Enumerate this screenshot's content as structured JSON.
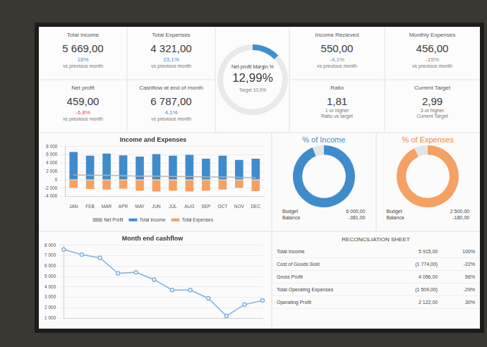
{
  "kpis": [
    {
      "title": "Total Income",
      "value": "5 669,00",
      "change": "16%",
      "color": "#3d8fd1",
      "notes": [
        "vs previous month"
      ]
    },
    {
      "title": "Total Expenses",
      "value": "4 321,00",
      "change": "23,1%",
      "color": "#3d8fd1",
      "notes": [
        "vs previous month"
      ]
    },
    {
      "title": "Net profit",
      "value": "459,00",
      "change": "-6,8%",
      "color": "#d9534f",
      "notes": [
        "vs previous month"
      ]
    },
    {
      "title": "Cashflow at end of month",
      "value": "6 787,00",
      "change": "4,1%",
      "color": "#3d8fd1",
      "notes": [
        "vs previous month"
      ]
    },
    {
      "title": "Income Recieved",
      "value": "550,00",
      "change": "-4,1%",
      "color": "#8a8a8a",
      "notes": [
        "vs previous month"
      ]
    },
    {
      "title": "Monthly Expenses",
      "value": "456,00",
      "change": "-15%",
      "color": "#8a8a8a",
      "notes": [
        "vs previous month"
      ]
    },
    {
      "title": "Ratio",
      "value": "1,81",
      "notes": [
        "1 or higher",
        "Ratio vs target"
      ]
    },
    {
      "title": "Current Target",
      "value": "2,99",
      "notes": [
        "3 or higher",
        "Current Target"
      ]
    }
  ],
  "chart_data": [
    {
      "type": "doughnut",
      "title": "Net profit Margin %",
      "values": [
        12.99
      ],
      "value_labels": [
        "12,99%"
      ],
      "ylim": [
        0,
        100
      ],
      "subtitle": "Target 10,0%",
      "color": "#3d8fd1"
    },
    {
      "type": "bar",
      "title": "Income and Expenses",
      "stacked": true,
      "grid": true,
      "legend": "bottom",
      "categories": [
        "JAN",
        "FEB",
        "MAR",
        "APR",
        "MAY",
        "JUN",
        "JUL",
        "AUG",
        "SEP",
        "OCT",
        "NOV",
        "DEC"
      ],
      "series": [
        {
          "name": "Total Income",
          "type": "bar",
          "color": "#3f8ccc",
          "values": [
            6700,
            5800,
            6300,
            5900,
            5600,
            6200,
            5800,
            6000,
            5100,
            5800,
            4800,
            5100
          ]
        },
        {
          "name": "Total Expenses",
          "type": "bar",
          "color": "#f4a163",
          "values": [
            -1900,
            -2200,
            -2300,
            -2100,
            -2600,
            -2800,
            -2600,
            -2800,
            -2600,
            -2300,
            -1900,
            -2700
          ]
        },
        {
          "name": "Net Profit",
          "type": "line",
          "color": "#b5b5b5",
          "values": [
            1200,
            1100,
            1100,
            1000,
            900,
            900,
            800,
            800,
            700,
            700,
            600,
            500
          ]
        }
      ],
      "ylim": [
        -4000,
        8000
      ],
      "yticks": [
        {
          "value": -4000,
          "label": "-4 000"
        },
        {
          "value": -2000,
          "label": "-2 000"
        },
        0,
        {
          "value": 2000,
          "label": "2 000"
        },
        {
          "value": 4000,
          "label": "4 000"
        },
        {
          "value": 6000,
          "label": "6 000"
        },
        {
          "value": 8000,
          "label": "8 000"
        }
      ]
    },
    {
      "type": "doughnut",
      "title": "% of Income",
      "values": [
        94,
        6
      ],
      "colors": [
        "#3f8ccc",
        "#e4e4e4"
      ],
      "color": "#3f8ccc",
      "footer": [
        [
          "Budget",
          "6 000,00"
        ],
        [
          "Balance",
          "-381,00"
        ]
      ]
    },
    {
      "type": "doughnut",
      "title": "% of Expenses",
      "values": [
        93,
        7
      ],
      "colors": [
        "#f4a163",
        "#e4e4e4"
      ],
      "color": "#f08a3c",
      "footer": [
        [
          "Budget",
          "2 500,00"
        ],
        [
          "Balance",
          "-180,00"
        ]
      ]
    },
    {
      "type": "line",
      "title": "Month end cashflow",
      "grid": true,
      "tick_labels": "y",
      "marker": "circle",
      "color": "#7fb2dd",
      "categories": [
        null,
        null,
        null,
        null,
        null,
        null,
        null,
        null,
        null,
        null,
        null,
        null
      ],
      "values": [
        7600,
        7100,
        6800,
        5300,
        5400,
        4700,
        3700,
        3700,
        2900,
        1200,
        2300,
        2700
      ],
      "ylim": [
        1000,
        8000
      ],
      "yticks": [
        {
          "value": 1000,
          "label": "1 000"
        },
        {
          "value": 2000,
          "label": "2 000"
        },
        {
          "value": 3000,
          "label": "3 000"
        },
        {
          "value": 4000,
          "label": "4 000"
        },
        {
          "value": 5000,
          "label": "5 000"
        },
        {
          "value": 6000,
          "label": "6 000"
        },
        {
          "value": 7000,
          "label": "7 000"
        },
        {
          "value": 8000,
          "label": "8 000"
        }
      ]
    }
  ],
  "reconciliation": {
    "title": "RECONCILIATION SHEET",
    "rows": [
      [
        "Total Income",
        "5 915,00",
        "100%"
      ],
      [
        "Cost of Goods Sold",
        "(1 774,00)",
        "-22%"
      ],
      [
        "Gross Profit",
        "4 056,00",
        "56%"
      ],
      [
        "Total Operating Expenses",
        "(1 509,00)",
        "-29%"
      ],
      [
        "Operating Profit",
        "2 122,00",
        "30%"
      ]
    ]
  }
}
